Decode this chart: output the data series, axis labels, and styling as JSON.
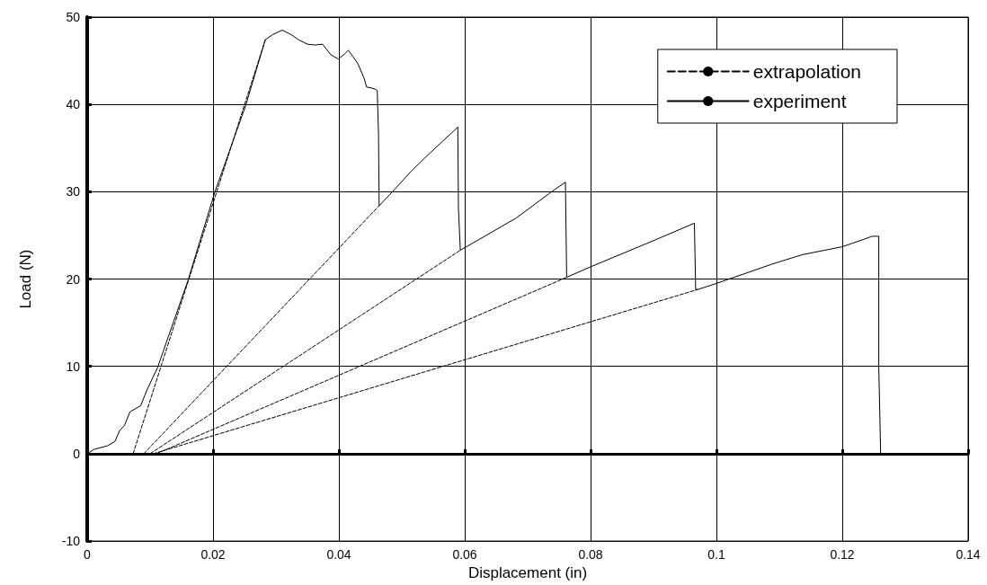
{
  "chart_data": {
    "type": "line",
    "xlabel": "Displacement (in)",
    "ylabel": "Load (N)",
    "xlim": [
      0,
      0.14
    ],
    "xticks": [
      0,
      0.02,
      0.04,
      0.06,
      0.08,
      0.1,
      0.12,
      0.14
    ],
    "ylim": [
      -10,
      50
    ],
    "yticks": [
      -10,
      0,
      10,
      20,
      30,
      40,
      50
    ],
    "grid": true,
    "legend": "top right",
    "marker": "none",
    "series": [
      {
        "name": "extrapolation",
        "color": "#000000",
        "line_style": "dashed",
        "x": [
          0.0073,
          0.0283
        ],
        "values": [
          0,
          47.4
        ]
      },
      {
        "name": "experiment",
        "color": "#000000",
        "line_style": "solid",
        "x": [
          0,
          0.0011,
          0.0032,
          0.0044,
          0.0052,
          0.0059,
          0.0068,
          0.0085,
          0.0095,
          0.0112,
          0.016,
          0.0203,
          0.0252,
          0.0283,
          0.0295,
          0.031,
          0.0324,
          0.0336,
          0.035,
          0.0362,
          0.0374,
          0.0387,
          0.0399,
          0.0408,
          0.0415,
          0.0423,
          0.043,
          0.044,
          0.0444,
          0.0456,
          0.0461,
          0.0463,
          0.0464,
          0.0489,
          0.0513,
          0.0537,
          0.0589,
          0.059,
          0.0593,
          0.0634,
          0.0682,
          0.074,
          0.076,
          0.0762,
          0.08,
          0.085,
          0.09,
          0.0965,
          0.0967,
          0.097,
          0.1,
          0.104,
          0.1088,
          0.1137,
          0.12,
          0.1248,
          0.1258,
          0.1258,
          0.1261
        ],
        "values": [
          0,
          0.5,
          0.9,
          1.4,
          2.7,
          3.2,
          4.8,
          5.5,
          7.3,
          9.9,
          19.8,
          30,
          39.9,
          47.4,
          48,
          48.5,
          48,
          47.4,
          46.9,
          46.8,
          46.9,
          45.7,
          45.2,
          45.7,
          46.2,
          45.4,
          44.7,
          43,
          42,
          41.8,
          41.6,
          36.5,
          28.4,
          30.3,
          32.2,
          33.9,
          37.4,
          28.1,
          23.3,
          25,
          27,
          30.1,
          31.1,
          20.2,
          21.4,
          22.9,
          24.4,
          26.4,
          18.8,
          18.8,
          19.5,
          20.5,
          21.7,
          22.8,
          23.7,
          24.9,
          24.9,
          10,
          0
        ]
      },
      {
        "color": "#000000",
        "line_style": "dashed",
        "x": [
          0.009,
          0.0464
        ],
        "values": [
          0,
          28.4
        ]
      },
      {
        "color": "#000000",
        "line_style": "dashed",
        "x": [
          0.01,
          0.0593
        ],
        "values": [
          0,
          23.3
        ]
      },
      {
        "color": "#000000",
        "line_style": "dashed",
        "x": [
          0.011,
          0.0762
        ],
        "values": [
          0,
          20.2
        ]
      },
      {
        "color": "#000000",
        "line_style": "dashed",
        "x": [
          0.0105,
          0.097
        ],
        "values": [
          0,
          18.8
        ]
      }
    ]
  }
}
